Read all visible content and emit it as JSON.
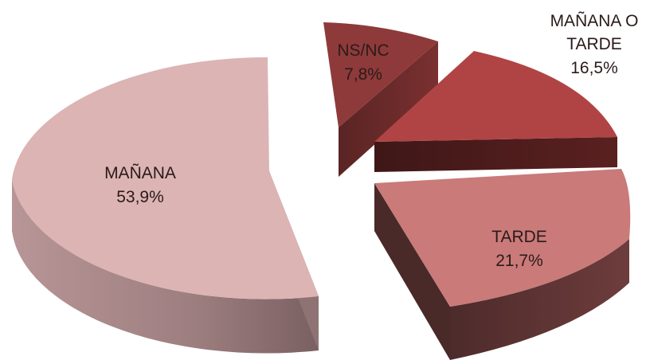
{
  "chart_data": {
    "type": "pie",
    "style": "3d-exploded",
    "slices": [
      {
        "label": "MAÑANA",
        "value": 53.9,
        "display": "53,9%",
        "color": "#dcb4b4",
        "side_color": "#a98786"
      },
      {
        "label": "NS/NC",
        "value": 7.8,
        "display": "7,8%",
        "color": "#8e3a3a",
        "side_color": "#5a2626"
      },
      {
        "label": "MAÑANA O TARDE",
        "label_lines": [
          "MAÑANA O",
          "TARDE"
        ],
        "value": 16.5,
        "display": "16,5%",
        "color": "#b04444",
        "side_color": "#4a1c1c"
      },
      {
        "label": "TARDE",
        "value": 21.7,
        "display": "21,7%",
        "color": "#c97a79",
        "side_color": "#5e3332"
      }
    ]
  }
}
